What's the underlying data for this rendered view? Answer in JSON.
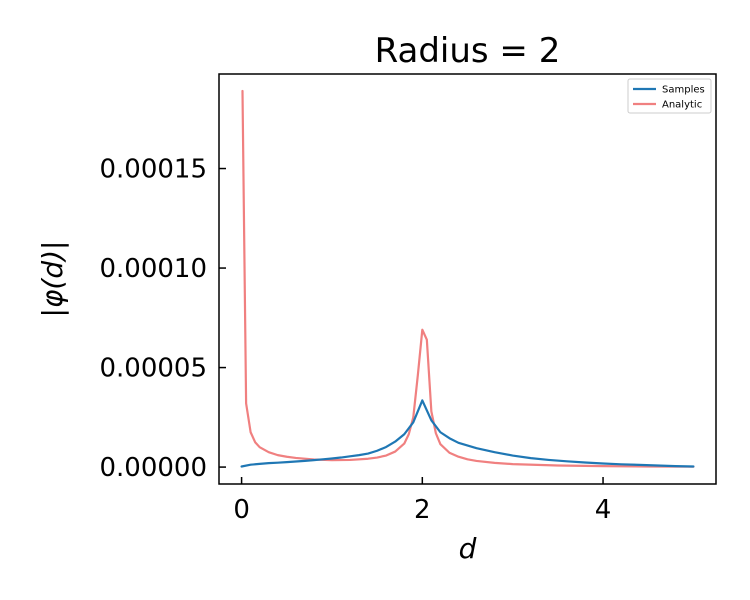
{
  "chart_data": {
    "type": "line",
    "title": "Radius = 2",
    "xlabel": "d",
    "ylabel": "|φ(d)|",
    "xlim": [
      -0.25,
      5.25
    ],
    "ylim": [
      -8.5e-06,
      0.0001975
    ],
    "xticks": [
      0,
      2,
      4
    ],
    "xtick_labels": [
      "0",
      "2",
      "4"
    ],
    "yticks": [
      0,
      5e-05,
      0.0001,
      0.00015
    ],
    "ytick_labels": [
      "0.00000",
      "0.00005",
      "0.00010",
      "0.00015"
    ],
    "grid": false,
    "legend_position": "top-right",
    "series": [
      {
        "name": "Samples",
        "color": "#1f77b4",
        "x": [
          0,
          0.1,
          0.2,
          0.3,
          0.4,
          0.5,
          0.6,
          0.7,
          0.8,
          0.9,
          1.0,
          1.1,
          1.2,
          1.3,
          1.4,
          1.5,
          1.6,
          1.7,
          1.8,
          1.9,
          2.0,
          2.1,
          2.2,
          2.3,
          2.4,
          2.6,
          2.8,
          3.0,
          3.2,
          3.4,
          3.6,
          3.8,
          4.0,
          4.2,
          4.4,
          4.6,
          4.8,
          5.0
        ],
        "y": [
          3e-07,
          1.2e-06,
          1.6e-06,
          2e-06,
          2.2e-06,
          2.5e-06,
          2.8e-06,
          3.1e-06,
          3.5e-06,
          3.9e-06,
          4.3e-06,
          4.8e-06,
          5.4e-06,
          6e-06,
          6.8e-06,
          8.2e-06,
          1.01e-05,
          1.28e-05,
          1.65e-05,
          2.25e-05,
          3.35e-05,
          2.35e-05,
          1.75e-05,
          1.45e-05,
          1.22e-05,
          9.5e-06,
          7.5e-06,
          5.8e-06,
          4.5e-06,
          3.6e-06,
          2.9e-06,
          2.3e-06,
          1.8e-06,
          1.4e-06,
          1.1e-06,
          8e-07,
          5e-07,
          3e-07
        ]
      },
      {
        "name": "Analytic",
        "color": "#f08080",
        "x": [
          0.01,
          0.05,
          0.1,
          0.15,
          0.2,
          0.3,
          0.4,
          0.5,
          0.6,
          0.8,
          1.0,
          1.2,
          1.4,
          1.5,
          1.6,
          1.7,
          1.8,
          1.85,
          1.9,
          1.95,
          2.0,
          2.05,
          2.1,
          2.15,
          2.2,
          2.3,
          2.4,
          2.5,
          2.6,
          2.8,
          3.0,
          3.5,
          4.0,
          4.5,
          5.0
        ],
        "y": [
          0.000189,
          3.2e-05,
          1.75e-05,
          1.25e-05,
          1e-05,
          7.5e-06,
          6e-06,
          5.2e-06,
          4.6e-06,
          3.8e-06,
          3.5e-06,
          3.6e-06,
          4.2e-06,
          4.8e-06,
          5.8e-06,
          7.8e-06,
          1.18e-05,
          1.65e-05,
          2.5e-05,
          4.6e-05,
          6.9e-05,
          6.4e-05,
          2.8e-05,
          1.7e-05,
          1.15e-05,
          7.2e-06,
          5.2e-06,
          3.9e-06,
          3.1e-06,
          2.1e-06,
          1.5e-06,
          8e-07,
          5e-07,
          3e-07,
          2e-07
        ]
      }
    ]
  }
}
